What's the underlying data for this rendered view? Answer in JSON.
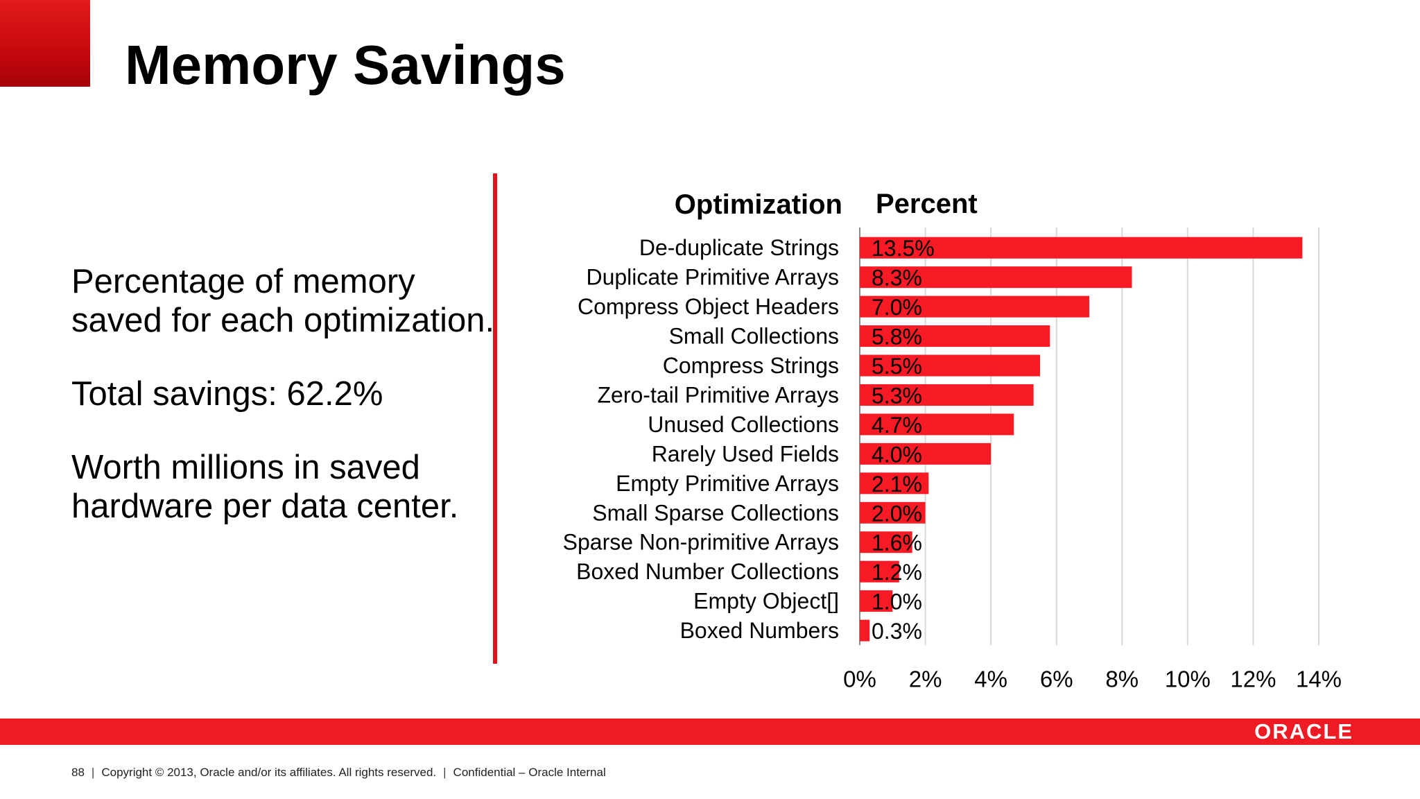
{
  "slide": {
    "title": "Memory Savings",
    "left_paragraphs": [
      "Percentage of memory saved for each optimization.",
      "Total savings: 62.2%",
      "Worth millions in saved hardware per data center."
    ],
    "logo_text": "ORACLE",
    "footer": {
      "page": "88",
      "copyright": "Copyright © 2013, Oracle and/or its affiliates. All rights reserved.",
      "confidential": "Confidential – Oracle Internal"
    }
  },
  "colors": {
    "accent": "#ee1b24",
    "bar": "#f81a24",
    "text": "#000000"
  },
  "chart_data": {
    "type": "bar",
    "orientation": "horizontal",
    "category_header": "Optimization",
    "value_header": "Percent",
    "categories": [
      "De-duplicate Strings",
      "Duplicate Primitive Arrays",
      "Compress Object Headers",
      "Small Collections",
      "Compress Strings",
      "Zero-tail Primitive Arrays",
      "Unused Collections",
      "Rarely Used Fields",
      "Empty Primitive Arrays",
      "Small Sparse Collections",
      "Sparse Non-primitive Arrays",
      "Boxed Number Collections",
      "Empty Object[]",
      "Boxed Numbers"
    ],
    "values": [
      13.5,
      8.3,
      7.0,
      5.8,
      5.5,
      5.3,
      4.7,
      4.0,
      2.1,
      2.0,
      1.6,
      1.2,
      1.0,
      0.3
    ],
    "data_labels": [
      "13.5%",
      "8.3%",
      "7.0%",
      "5.8%",
      "5.5%",
      "5.3%",
      "4.7%",
      "4.0%",
      "2.1%",
      "2.0%",
      "1.6%",
      "1.2%",
      "1.0%",
      "0.3%"
    ],
    "xlim": [
      0,
      14
    ],
    "x_ticks": [
      0,
      2,
      4,
      6,
      8,
      10,
      12,
      14
    ],
    "x_tick_labels": [
      "0%",
      "2%",
      "4%",
      "6%",
      "8%",
      "10%",
      "12%",
      "14%"
    ],
    "grid": true
  }
}
